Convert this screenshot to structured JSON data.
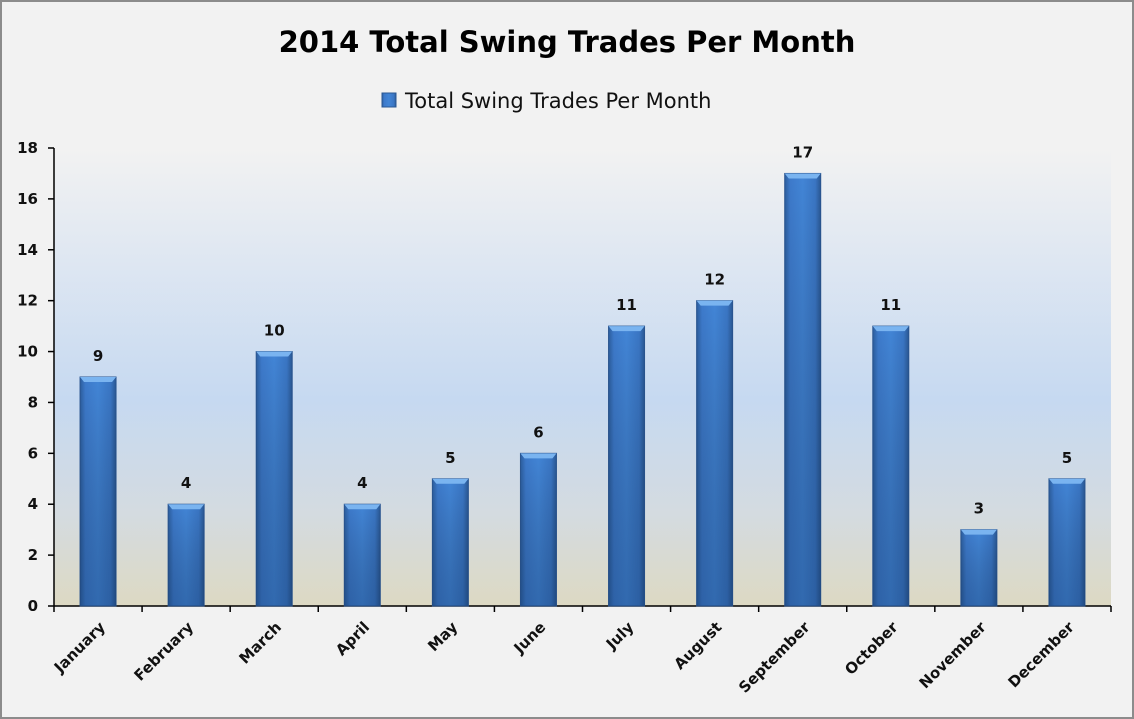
{
  "chart_data": {
    "type": "bar",
    "title": "2014 Total Swing Trades Per Month",
    "xlabel": "",
    "ylabel": "",
    "legend": {
      "entries": [
        "Total Swing Trades Per Month"
      ],
      "placement": "top"
    },
    "categories": [
      "January",
      "February",
      "March",
      "April",
      "May",
      "June",
      "July",
      "August",
      "September",
      "October",
      "November",
      "December"
    ],
    "series": [
      {
        "name": "Total Swing Trades Per Month",
        "values": [
          9,
          4,
          10,
          4,
          5,
          6,
          11,
          12,
          17,
          11,
          3,
          5
        ]
      }
    ],
    "ylim": [
      0,
      18
    ],
    "yticks": [
      0,
      2,
      4,
      6,
      8,
      10,
      12,
      14,
      16,
      18
    ],
    "grid": false,
    "colors": {
      "bar": "#3a78c8",
      "bar_dark": "#2a5a9a",
      "bar_top": "#6aa8ec"
    }
  }
}
